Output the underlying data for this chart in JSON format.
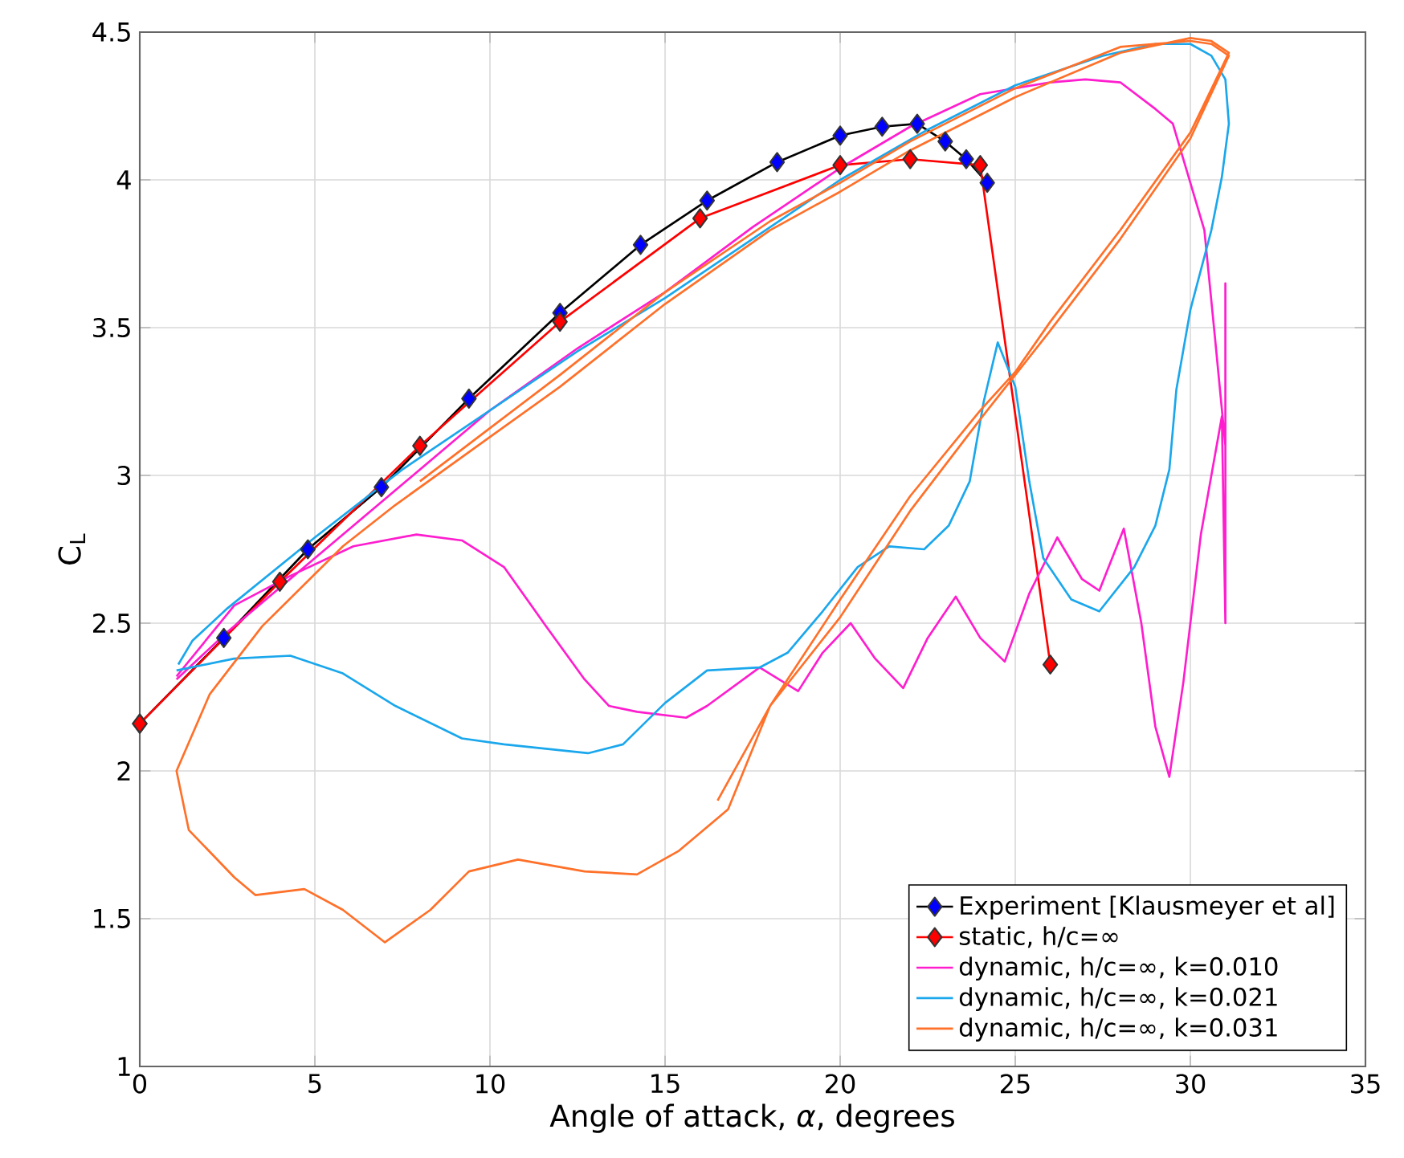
{
  "chart_data": {
    "type": "line",
    "xlabel": "Angle of attack, *α*, degrees",
    "ylabel": "C$_{L}$",
    "xlim": [
      0,
      35
    ],
    "ylim": [
      1,
      4.5
    ],
    "xticks": [
      0,
      5,
      10,
      15,
      20,
      25,
      30,
      35
    ],
    "yticks": [
      1,
      1.5,
      2,
      2.5,
      3,
      3.5,
      4,
      4.5
    ],
    "grid": true,
    "legend": "bottom right",
    "series": [
      {
        "name": "Experiment [Klausmeyer et al]",
        "color": "#000000",
        "marker": "diamond",
        "colors": [
          "#0000ff",
          "#0000ff",
          "#0000ff",
          "#0000ff",
          "#0000ff",
          "#0000ff",
          "#0000ff",
          "#0000ff",
          "#0000ff",
          "#0000ff",
          "#0000ff",
          "#0000ff",
          "#0000ff",
          "#0000ff",
          "#0000ff"
        ],
        "x": [
          0,
          2.4,
          4.8,
          6.9,
          9.4,
          12,
          14.3,
          16.2,
          18.2,
          20,
          21.2,
          22.2,
          23,
          23.6,
          24.2
        ],
        "values": [
          2.16,
          2.45,
          2.75,
          2.96,
          3.26,
          3.55,
          3.78,
          3.93,
          4.06,
          4.15,
          4.18,
          4.19,
          4.13,
          4.07,
          3.99
        ]
      },
      {
        "name": "static, h/c=∞",
        "color": "#ff0000",
        "marker": "diamond",
        "x": [
          0,
          4,
          8,
          12,
          16,
          20,
          22,
          24,
          26
        ],
        "values": [
          2.16,
          2.64,
          3.1,
          3.52,
          3.87,
          4.05,
          4.07,
          4.05,
          2.36
        ]
      },
      {
        "name": "dynamic, h/c=∞, k=0.010",
        "color": "#ff1dce",
        "marker": "none",
        "x": [
          1.05,
          2.5,
          5,
          7.5,
          10,
          12.5,
          15,
          17.5,
          20,
          22,
          24,
          26,
          27,
          28,
          29,
          29.5,
          30.4,
          30.7,
          31,
          31,
          31,
          30.9,
          30.3,
          29.8,
          29.4,
          29,
          28.6,
          28.1,
          27.4,
          26.9,
          26.2,
          25.4,
          24.7,
          24,
          23.3,
          22.5,
          21.8,
          21,
          20.3,
          19.5,
          18.8,
          17.7,
          16.2,
          15.6,
          14.2,
          13.4,
          12.7,
          11.6,
          10.4,
          9.2,
          7.9,
          6.1,
          4.3,
          2.7,
          1.05
        ],
        "values": [
          2.31,
          2.47,
          2.72,
          2.97,
          3.22,
          3.43,
          3.62,
          3.84,
          4.04,
          4.18,
          4.29,
          4.33,
          4.34,
          4.33,
          4.24,
          4.19,
          3.83,
          3.47,
          3.1,
          3.65,
          2.5,
          3.2,
          2.8,
          2.3,
          1.98,
          2.15,
          2.5,
          2.82,
          2.61,
          2.65,
          2.79,
          2.6,
          2.37,
          2.45,
          2.59,
          2.45,
          2.28,
          2.38,
          2.5,
          2.4,
          2.27,
          2.35,
          2.22,
          2.18,
          2.2,
          2.22,
          2.31,
          2.49,
          2.69,
          2.78,
          2.8,
          2.76,
          2.66,
          2.56,
          2.32
        ]
      },
      {
        "name": "dynamic, h/c=∞, k=0.021",
        "color": "#1aa7ec",
        "marker": "none",
        "x": [
          1.1,
          1.5,
          2.5,
          5,
          7.5,
          10,
          12.5,
          15,
          17.5,
          20,
          22.5,
          25,
          27.5,
          29,
          30,
          30.6,
          31,
          31.1,
          30.9,
          30.6,
          30,
          29.6,
          29.4,
          29,
          28.4,
          27.4,
          26.6,
          25.8,
          25.4,
          25,
          24.5,
          24.1,
          23.7,
          23.1,
          22.4,
          21.4,
          20.5,
          19.5,
          18.5,
          17.7,
          16.2,
          15,
          13.8,
          12.8,
          10.4,
          9.2,
          7.3,
          5.8,
          4.3,
          2.7,
          1.05
        ],
        "values": [
          2.36,
          2.44,
          2.55,
          2.79,
          3.02,
          3.22,
          3.42,
          3.6,
          3.8,
          4.0,
          4.17,
          4.32,
          4.42,
          4.46,
          4.46,
          4.42,
          4.34,
          4.19,
          4.01,
          3.83,
          3.56,
          3.29,
          3.02,
          2.83,
          2.69,
          2.54,
          2.58,
          2.72,
          2.98,
          3.3,
          3.45,
          3.25,
          2.98,
          2.83,
          2.75,
          2.76,
          2.69,
          2.54,
          2.4,
          2.35,
          2.34,
          2.23,
          2.09,
          2.06,
          2.09,
          2.11,
          2.22,
          2.33,
          2.39,
          2.38,
          2.34
        ]
      },
      {
        "name": "dynamic, h/c=∞, k=0.031",
        "color": "#ff7029",
        "marker": "none",
        "x": [
          16.5,
          18,
          20,
          22,
          24,
          25,
          26,
          28,
          30,
          31.1,
          30.6,
          30,
          28,
          25,
          22,
          20,
          18,
          15,
          12,
          10,
          7.3,
          5.8,
          3.5,
          2,
          1.05,
          1.4,
          2.7,
          3.3,
          4.7,
          5.8,
          7,
          8.3,
          9.4,
          10.8,
          12.7,
          14.2,
          15.4,
          16.8,
          18,
          20,
          22,
          24,
          26,
          28,
          30,
          31.1,
          30.6,
          30,
          28,
          25,
          22,
          20,
          18,
          15,
          12,
          10,
          8
        ],
        "values": [
          1.9,
          2.22,
          2.58,
          2.93,
          3.22,
          3.35,
          3.52,
          3.83,
          4.16,
          4.43,
          4.47,
          4.48,
          4.43,
          4.28,
          4.1,
          3.96,
          3.83,
          3.58,
          3.3,
          3.13,
          2.9,
          2.76,
          2.49,
          2.26,
          2.0,
          1.8,
          1.64,
          1.58,
          1.6,
          1.53,
          1.42,
          1.53,
          1.66,
          1.7,
          1.66,
          1.65,
          1.73,
          1.87,
          2.22,
          2.52,
          2.88,
          3.19,
          3.49,
          3.8,
          4.14,
          4.42,
          4.46,
          4.47,
          4.45,
          4.31,
          4.13,
          3.99,
          3.86,
          3.62,
          3.34,
          3.16,
          2.98
        ]
      }
    ]
  }
}
